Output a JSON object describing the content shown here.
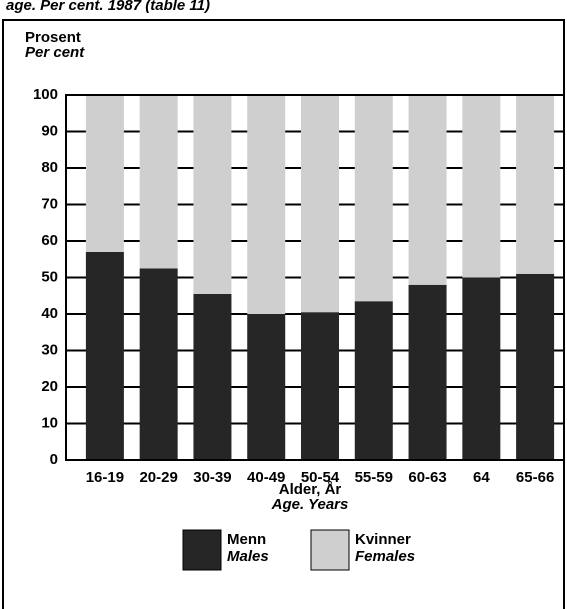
{
  "chart_data": {
    "type": "stacked_bar",
    "caption": "age. Per cent. 1987 (table 11)",
    "ylabel": "Prosent",
    "ylabel_en": "Per cent",
    "xlabel": "Alder, År",
    "xlabel_en": "Age. Years",
    "categories": [
      "16-19",
      "20-29",
      "30-39",
      "40-49",
      "50-54",
      "55-59",
      "60-63",
      "64",
      "65-66"
    ],
    "series": [
      {
        "name": "Menn",
        "name_en": "Males",
        "color": "#262626",
        "values": [
          57,
          52.5,
          45.5,
          40,
          40.5,
          43.5,
          48,
          50,
          51
        ]
      },
      {
        "name": "Kvinner",
        "name_en": "Females",
        "color": "#cfcfcf",
        "values": [
          43,
          47.5,
          54.5,
          60,
          59.5,
          56.5,
          52,
          50,
          49
        ]
      }
    ],
    "ylim": [
      0,
      100
    ],
    "yticks": [
      0,
      10,
      20,
      30,
      40,
      50,
      60,
      70,
      80,
      90,
      100
    ],
    "grid": true,
    "legend": "bottom"
  }
}
